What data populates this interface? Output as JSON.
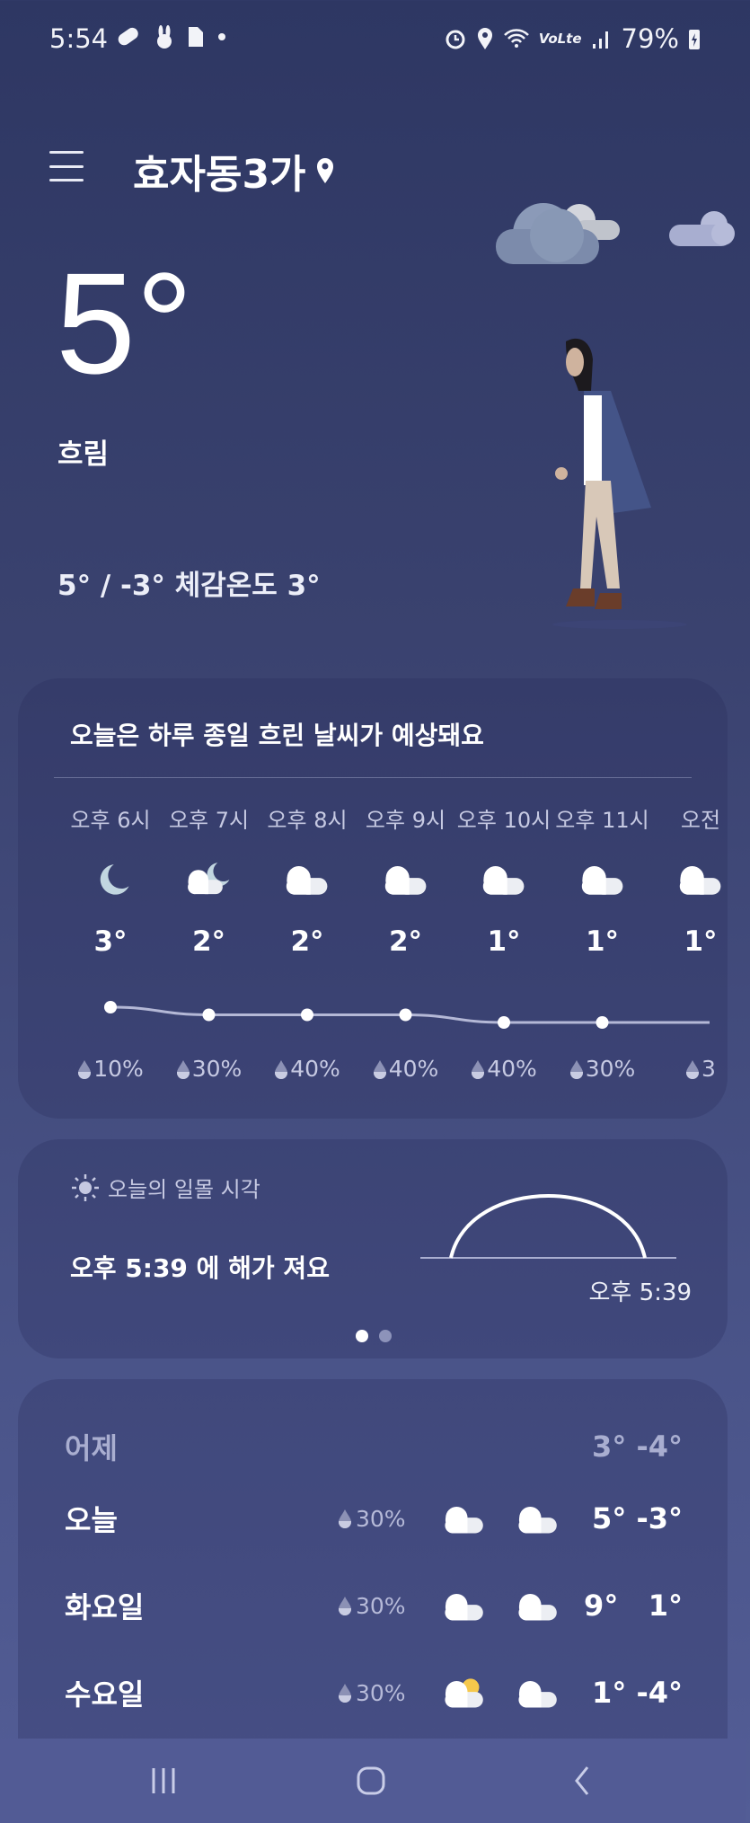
{
  "status_bar": {
    "time": "5:54",
    "battery": "79%",
    "left_icons": [
      "pill-icon",
      "rabbit-icon",
      "sd-card-icon",
      "dot-icon"
    ],
    "right_icons": [
      "alarm-icon",
      "location-icon",
      "wifi-icon",
      "volte-icon",
      "signal-icon",
      "battery-charging-icon"
    ]
  },
  "header": {
    "location": "효자동3가",
    "menu_icon": "hamburger-icon",
    "location_icon": "location-pin-icon"
  },
  "current": {
    "temperature": "5°",
    "condition": "흐림",
    "hi_lo_feels": "5° / -3° 체감온도 3°"
  },
  "hourly_card": {
    "summary": "오늘은 하루 종일 흐린 날씨가 예상돼요",
    "hours": [
      {
        "time": "오후 6시",
        "icon": "moon",
        "temp": "3°",
        "temp_value": 3,
        "precip": "10%"
      },
      {
        "time": "오후 7시",
        "icon": "moon-cloud",
        "temp": "2°",
        "temp_value": 2,
        "precip": "30%"
      },
      {
        "time": "오후 8시",
        "icon": "cloud",
        "temp": "2°",
        "temp_value": 2,
        "precip": "40%"
      },
      {
        "time": "오후 9시",
        "icon": "cloud",
        "temp": "2°",
        "temp_value": 2,
        "precip": "40%"
      },
      {
        "time": "오후 10시",
        "icon": "cloud",
        "temp": "1°",
        "temp_value": 1,
        "precip": "40%"
      },
      {
        "time": "오후 11시",
        "icon": "cloud",
        "temp": "1°",
        "temp_value": 1,
        "precip": "30%"
      },
      {
        "time": "오전",
        "icon": "cloud",
        "temp": "1°",
        "temp_value": 1,
        "precip": "3"
      }
    ]
  },
  "sunset_card": {
    "label": "오늘의 일몰 시각",
    "message": "오후 5:39 에 해가 져요",
    "sunset_time": "오후 5:39",
    "page": 1,
    "pages": 2
  },
  "daily": [
    {
      "day": "어제",
      "precip": "",
      "icons": [],
      "hilo": "3° -4°",
      "yesterday": true
    },
    {
      "day": "오늘",
      "precip": "30%",
      "icons": [
        "cloud",
        "cloud"
      ],
      "hilo": "5° -3°"
    },
    {
      "day": "화요일",
      "precip": "30%",
      "icons": [
        "cloud",
        "cloud"
      ],
      "hilo": "9°   1°"
    },
    {
      "day": "수요일",
      "precip": "30%",
      "icons": [
        "sun-cloud",
        "cloud"
      ],
      "hilo": "1° -4°"
    }
  ],
  "nav": {
    "buttons": [
      "recent-apps",
      "home",
      "back"
    ]
  },
  "colors": {
    "bg_top": "#2e3763",
    "bg_bottom": "#535d96",
    "sun_yellow": "#f5c84c",
    "moon": "#c2d6e0"
  }
}
